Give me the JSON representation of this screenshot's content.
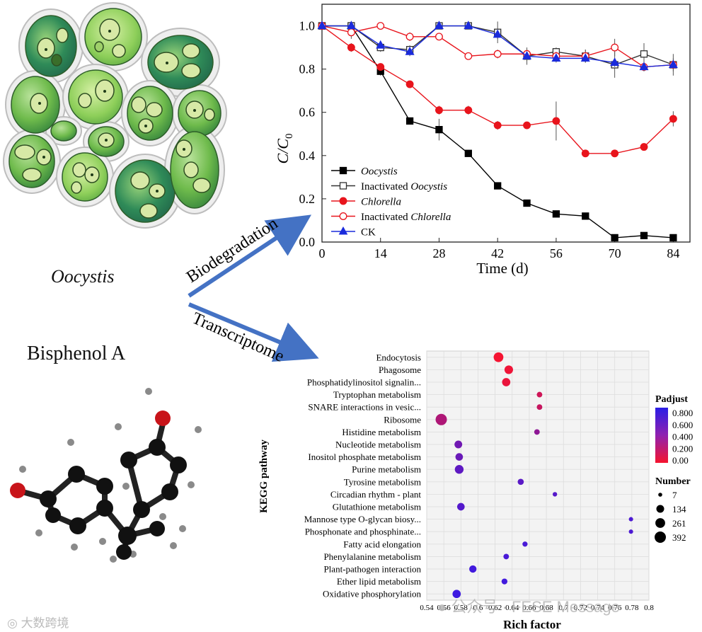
{
  "labels": {
    "organism": "Oocystis",
    "compound": "Bisphenol A",
    "arrow_top": "Biodegradation",
    "arrow_bottom": "Transcriptome"
  },
  "watermark": {
    "left": "大数跨境",
    "right": "公众号 · FESE Message"
  },
  "line_chart": {
    "ylabel_main": "C/C",
    "ylabel_sub": "0",
    "xlabel": "Time (d)",
    "x_ticks": [
      "0",
      "14",
      "28",
      "42",
      "56",
      "70",
      "84"
    ],
    "y_ticks": [
      "0.0",
      "0.2",
      "0.4",
      "0.6",
      "0.8",
      "1.0"
    ]
  },
  "bubble_chart": {
    "ylabel": "KEGG pathway",
    "xlabel": "Rich factor",
    "x_ticks": [
      "0.54",
      "0.56",
      "0.58",
      "0.6",
      "0.62",
      "0.64",
      "0.66",
      "0.68",
      "0.7",
      "0.72",
      "0.74",
      "0.76",
      "0.78",
      "0.8"
    ],
    "legend_padjust_title": "Padjust",
    "legend_padjust_ticks": [
      "0.800",
      "0.600",
      "0.400",
      "0.200",
      "0.00"
    ],
    "legend_number_title": "Number",
    "legend_number_ticks": [
      "7",
      "134",
      "261",
      "392"
    ]
  },
  "chart_data": [
    {
      "type": "line",
      "title": "",
      "xlabel": "Time (d)",
      "ylabel": "C/C0",
      "xlim": [
        0,
        88
      ],
      "ylim": [
        0,
        1.1
      ],
      "grid": false,
      "legend_position": "bottom-left",
      "series": [
        {
          "name": "Oocystis",
          "italic": true,
          "color": "#000000",
          "marker": "square",
          "filled": true,
          "x": [
            0,
            7,
            14,
            21,
            28,
            35,
            42,
            49,
            56,
            63,
            70,
            77,
            84
          ],
          "y": [
            1.0,
            1.0,
            0.79,
            0.56,
            0.52,
            0.41,
            0.26,
            0.18,
            0.13,
            0.12,
            0.02,
            0.03,
            0.02
          ],
          "err": [
            0.005,
            0.01,
            0.02,
            0.01,
            0.05,
            0.01,
            0.005,
            0.005,
            0.01,
            0.015,
            0.01,
            0.01,
            0.015
          ]
        },
        {
          "name": "Inactivated Oocystis",
          "italic_part": "Oocystis",
          "color": "#333333",
          "marker": "square",
          "filled": false,
          "x": [
            0,
            7,
            14,
            21,
            28,
            35,
            42,
            49,
            56,
            63,
            70,
            77,
            84
          ],
          "y": [
            1.0,
            1.0,
            0.9,
            0.89,
            1.0,
            1.0,
            0.97,
            0.86,
            0.88,
            0.86,
            0.82,
            0.87,
            0.82
          ],
          "err": [
            0.005,
            0.01,
            0.02,
            0.02,
            0.01,
            0.01,
            0.05,
            0.04,
            0.02,
            0.03,
            0.06,
            0.05,
            0.05
          ]
        },
        {
          "name": "Chlorella",
          "italic": true,
          "color": "#e8141c",
          "marker": "circle",
          "filled": true,
          "x": [
            0,
            7,
            14,
            21,
            28,
            35,
            42,
            49,
            56,
            63,
            70,
            77,
            84
          ],
          "y": [
            1.0,
            0.9,
            0.81,
            0.73,
            0.61,
            0.61,
            0.54,
            0.54,
            0.56,
            0.41,
            0.41,
            0.44,
            0.57
          ],
          "err": [
            0.005,
            0.02,
            0.01,
            0.01,
            0.02,
            0.02,
            0.02,
            0.01,
            0.09,
            0.01,
            0.01,
            0.01,
            0.035
          ]
        },
        {
          "name": "Inactivated Chlorella",
          "italic_part": "Chlorella",
          "color": "#e8141c",
          "marker": "circle",
          "filled": false,
          "x": [
            0,
            7,
            14,
            21,
            28,
            35,
            42,
            49,
            56,
            63,
            70,
            77,
            84
          ],
          "y": [
            1.0,
            0.97,
            1.0,
            0.95,
            0.95,
            0.86,
            0.87,
            0.87,
            0.86,
            0.86,
            0.9,
            0.81,
            0.82
          ],
          "err": [
            0.005,
            0.03,
            0.01,
            0.02,
            0.005,
            0.01,
            0.02,
            0.02,
            0.02,
            0.03,
            0.04,
            0.02,
            0.02
          ]
        },
        {
          "name": "CK",
          "color": "#1a2bdc",
          "marker": "triangle",
          "filled": true,
          "x": [
            0,
            7,
            14,
            21,
            28,
            35,
            42,
            49,
            56,
            63,
            70,
            77,
            84
          ],
          "y": [
            1.0,
            1.0,
            0.91,
            0.88,
            1.0,
            1.0,
            0.96,
            0.86,
            0.85,
            0.85,
            0.83,
            0.81,
            0.82
          ],
          "err": [
            0.005,
            0.01,
            0.01,
            0.02,
            0.01,
            0.01,
            0.02,
            0.02,
            0.02,
            0.02,
            0.02,
            0.02,
            0.03
          ]
        }
      ]
    },
    {
      "type": "scatter",
      "subtype": "bubble",
      "xlabel": "Rich factor",
      "ylabel": "KEGG pathway",
      "xlim": [
        0.54,
        0.8
      ],
      "grid": true,
      "legend_position": "right",
      "categories": [
        "Endocytosis",
        "Phagosome",
        "Phosphatidylinositol signalin...",
        "Tryptophan metabolism",
        "SNARE interactions in vesic...",
        "Ribosome",
        "Histidine metabolism",
        "Nucleotide metabolism",
        "Inositol phosphate metabolism",
        "Purine metabolism",
        "Tyrosine metabolism",
        "Circadian rhythm - plant",
        "Glutathione metabolism",
        "Mannose type O-glycan biosy...",
        "Phosphonate and phosphinate...",
        "Fatty acid elongation",
        "Phenylalanine metabolism",
        "Plant-pathogen interaction",
        "Ether lipid metabolism",
        "Oxidative phosphorylation"
      ],
      "rich_factor": [
        0.624,
        0.636,
        0.633,
        0.672,
        0.672,
        0.557,
        0.669,
        0.577,
        0.578,
        0.578,
        0.65,
        0.69,
        0.58,
        0.779,
        0.779,
        0.655,
        0.633,
        0.594,
        0.631,
        0.575
      ],
      "number": [
        260,
        180,
        160,
        40,
        40,
        392,
        40,
        130,
        120,
        190,
        60,
        15,
        120,
        12,
        12,
        30,
        40,
        110,
        50,
        160
      ],
      "padjust": [
        0.0,
        0.03,
        0.05,
        0.18,
        0.22,
        0.33,
        0.48,
        0.62,
        0.65,
        0.7,
        0.72,
        0.74,
        0.75,
        0.78,
        0.78,
        0.8,
        0.8,
        0.83,
        0.83,
        0.85
      ]
    }
  ]
}
